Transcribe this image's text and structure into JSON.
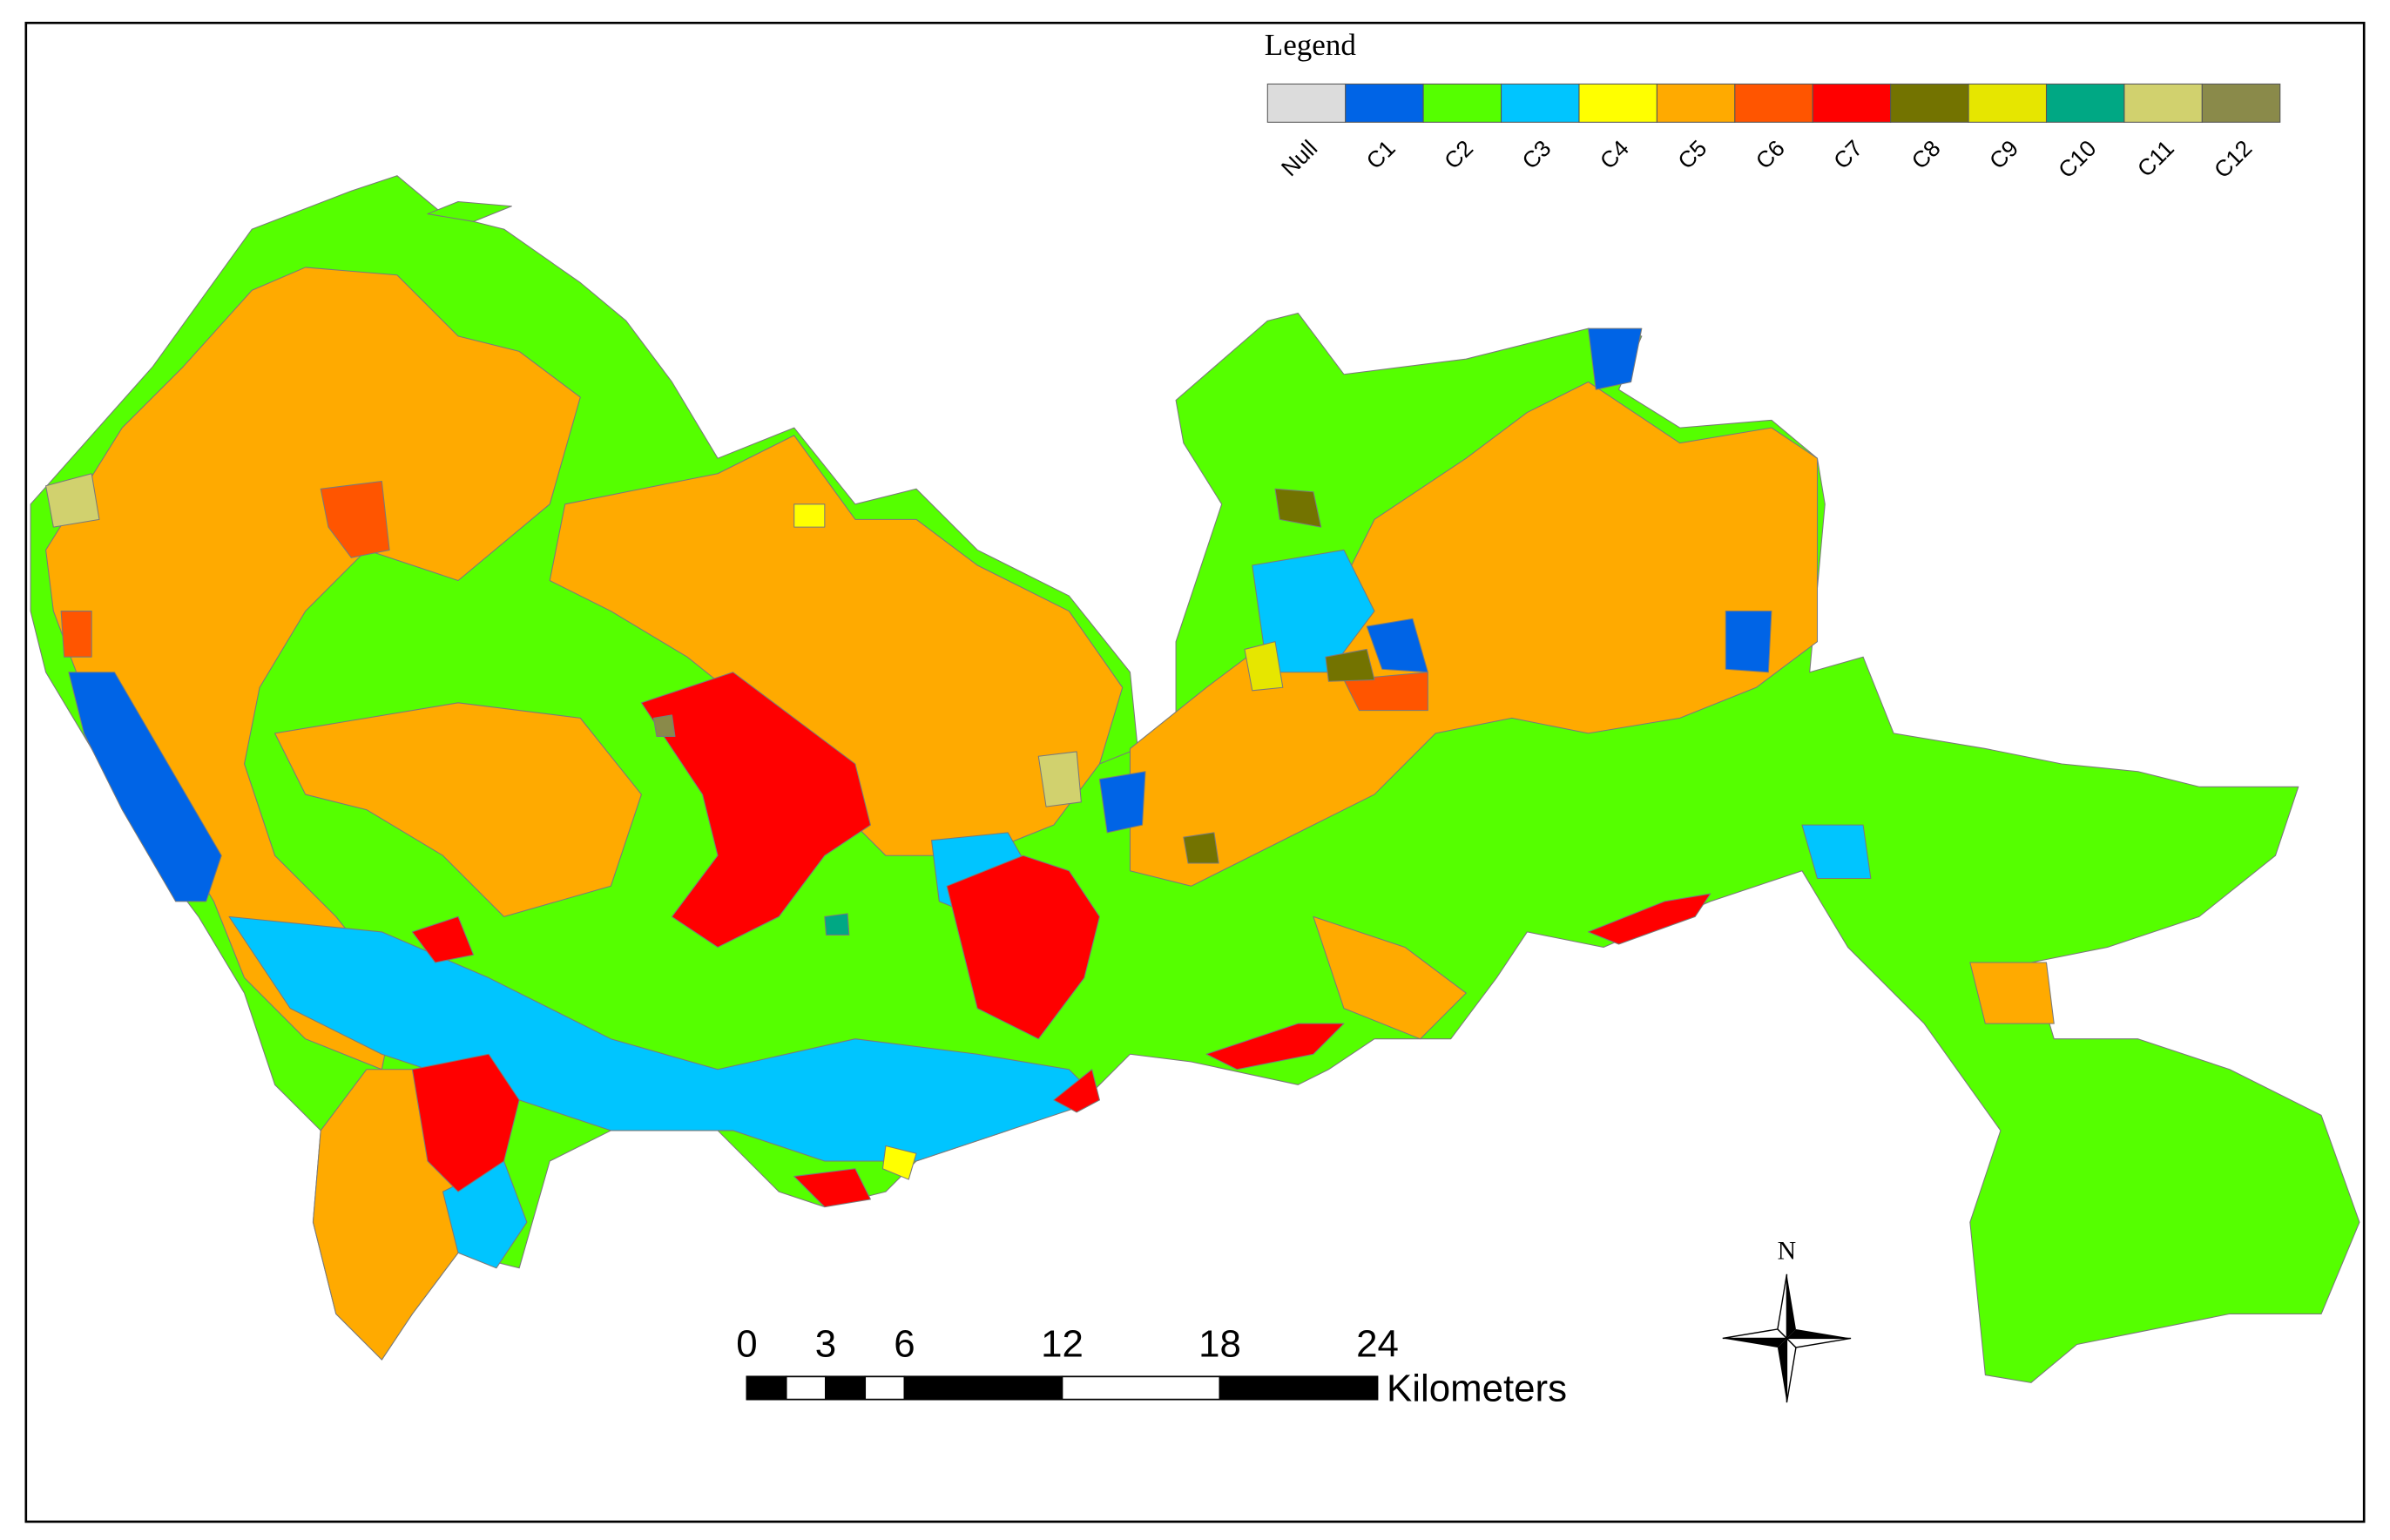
{
  "legend": {
    "title": "Legend",
    "items": [
      {
        "label": "Null",
        "color": "#dcdcdc"
      },
      {
        "label": "C1",
        "color": "#0064e6"
      },
      {
        "label": "C2",
        "color": "#55ff00"
      },
      {
        "label": "C3",
        "color": "#00c5ff"
      },
      {
        "label": "C4",
        "color": "#ffff00"
      },
      {
        "label": "C5",
        "color": "#ffaa00"
      },
      {
        "label": "C6",
        "color": "#ff5500"
      },
      {
        "label": "C7",
        "color": "#ff0000"
      },
      {
        "label": "C8",
        "color": "#737300"
      },
      {
        "label": "C9",
        "color": "#e6e600"
      },
      {
        "label": "C10",
        "color": "#00a884"
      },
      {
        "label": "C11",
        "color": "#d1d16e"
      },
      {
        "label": "C12",
        "color": "#8a8a4a"
      }
    ]
  },
  "scale_bar": {
    "ticks": [
      0,
      3,
      6,
      12,
      18,
      24
    ],
    "unit": "Kilometers"
  },
  "north_arrow": {
    "label": "N"
  }
}
